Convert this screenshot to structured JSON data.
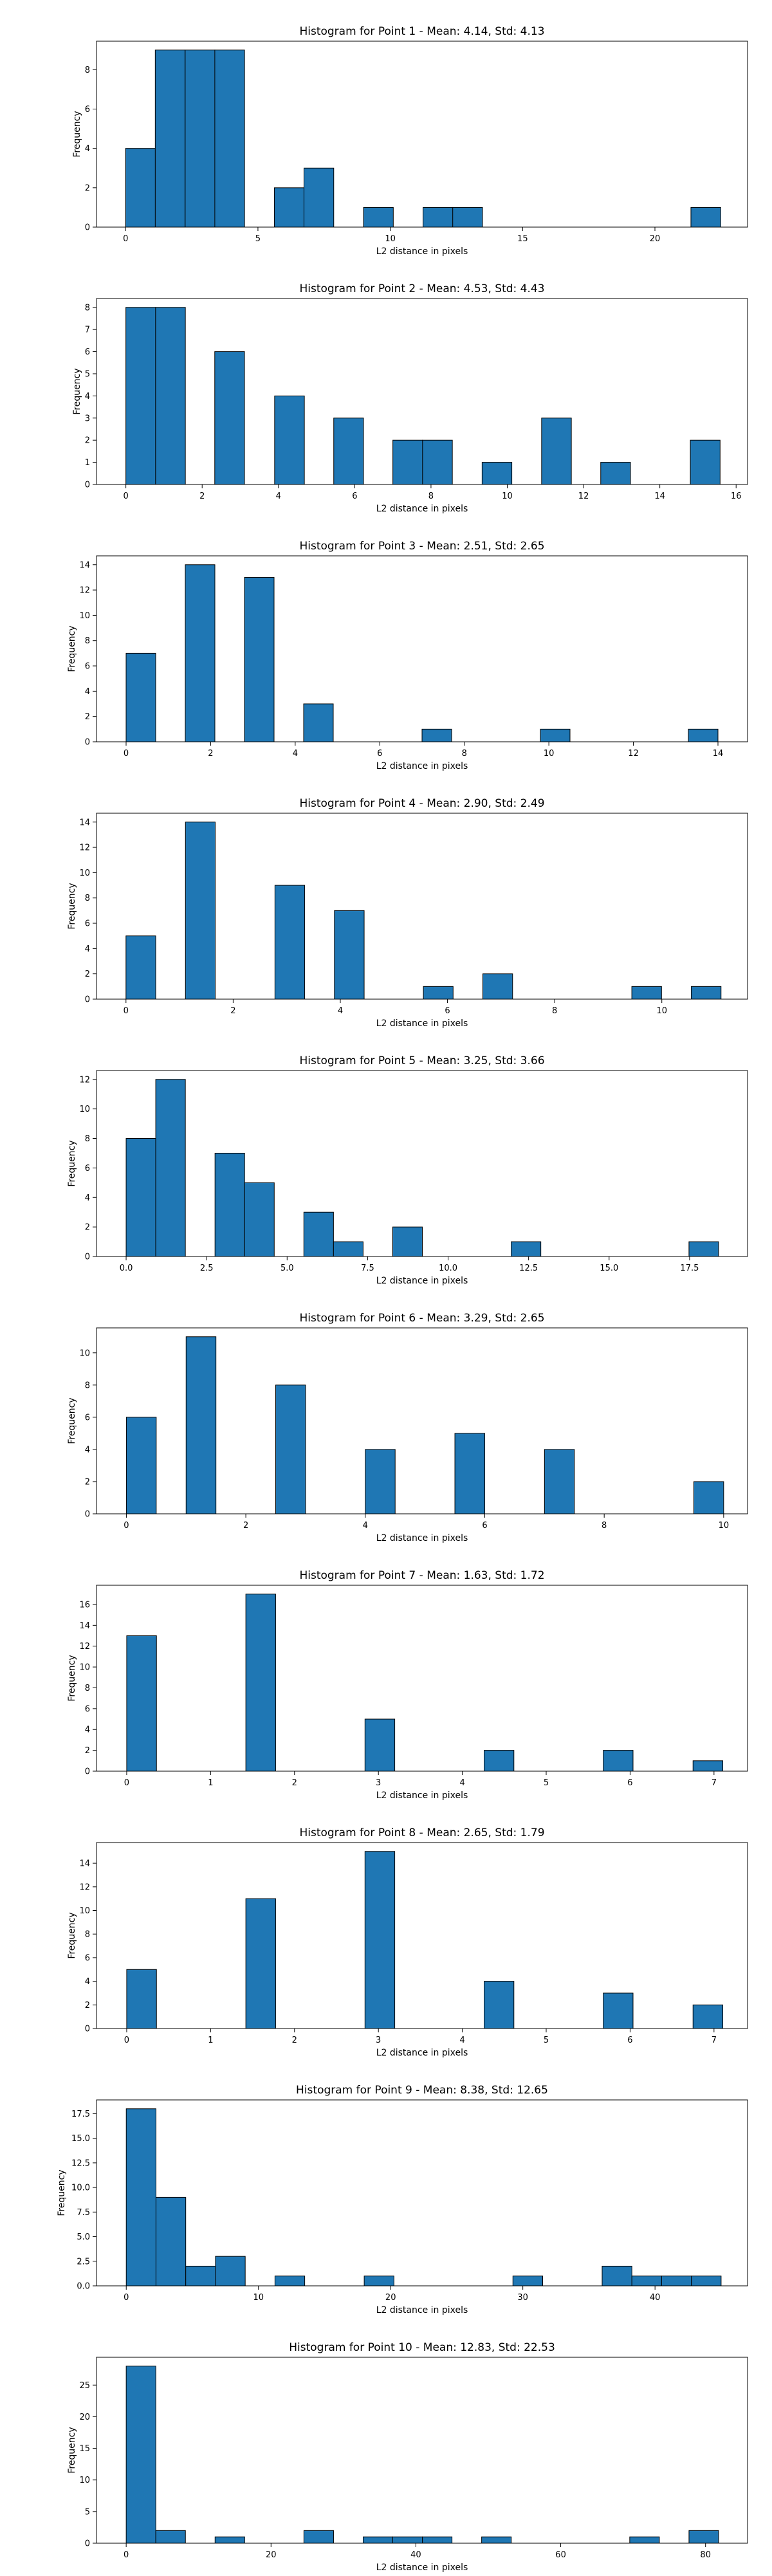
{
  "chart_data": [
    {
      "type": "bar",
      "title": "Histogram for Point 1 - Mean: 4.14, Std: 4.13",
      "xlabel": "L2 distance in pixels",
      "ylabel": "Frequency",
      "xlim": [
        -1.1,
        23.5
      ],
      "ylim": [
        0,
        9.45
      ],
      "xticks": [
        0,
        5,
        10,
        15,
        20
      ],
      "xtick_labels": [
        "0",
        "5",
        "10",
        "15",
        "20"
      ],
      "yticks": [
        0,
        2,
        4,
        6,
        8
      ],
      "ytick_labels": [
        "0",
        "2",
        "4",
        "6",
        "8"
      ],
      "bin_width": 1.124,
      "bins": [
        {
          "start": 0.0,
          "count": 4
        },
        {
          "start": 1.12,
          "count": 9
        },
        {
          "start": 2.25,
          "count": 9
        },
        {
          "start": 3.37,
          "count": 9
        },
        {
          "start": 5.62,
          "count": 2
        },
        {
          "start": 6.74,
          "count": 3
        },
        {
          "start": 8.99,
          "count": 1
        },
        {
          "start": 11.24,
          "count": 1
        },
        {
          "start": 12.36,
          "count": 1
        },
        {
          "start": 21.36,
          "count": 1
        }
      ],
      "grid": false,
      "legend": null
    },
    {
      "type": "bar",
      "title": "Histogram for Point 2 - Mean: 4.53, Std: 4.43",
      "xlabel": "L2 distance in pixels",
      "ylabel": "Frequency",
      "xlim": [
        -0.77,
        16.3
      ],
      "ylim": [
        0,
        8.4
      ],
      "xticks": [
        0,
        2,
        4,
        6,
        8,
        10,
        12,
        14,
        16
      ],
      "xtick_labels": [
        "0",
        "2",
        "4",
        "6",
        "8",
        "10",
        "12",
        "14",
        "16"
      ],
      "yticks": [
        0,
        1,
        2,
        3,
        4,
        5,
        6,
        7,
        8
      ],
      "ytick_labels": [
        "0",
        "1",
        "2",
        "3",
        "4",
        "5",
        "6",
        "7",
        "8"
      ],
      "bin_width": 0.78,
      "bins": [
        {
          "start": 0.0,
          "count": 8
        },
        {
          "start": 0.78,
          "count": 8
        },
        {
          "start": 2.33,
          "count": 6
        },
        {
          "start": 3.9,
          "count": 4
        },
        {
          "start": 5.45,
          "count": 3
        },
        {
          "start": 7.0,
          "count": 2
        },
        {
          "start": 7.78,
          "count": 2
        },
        {
          "start": 9.34,
          "count": 1
        },
        {
          "start": 10.9,
          "count": 3
        },
        {
          "start": 12.45,
          "count": 1
        },
        {
          "start": 14.8,
          "count": 2
        }
      ],
      "grid": false,
      "legend": null
    },
    {
      "type": "bar",
      "title": "Histogram for Point 3 - Mean: 2.51, Std: 2.65",
      "xlabel": "L2 distance in pixels",
      "ylabel": "Frequency",
      "xlim": [
        -0.7,
        14.7
      ],
      "ylim": [
        0,
        14.7
      ],
      "xticks": [
        0,
        2,
        4,
        6,
        8,
        10,
        12,
        14
      ],
      "xtick_labels": [
        "0",
        "2",
        "4",
        "6",
        "8",
        "10",
        "12",
        "14"
      ],
      "yticks": [
        0,
        2,
        4,
        6,
        8,
        10,
        12,
        14
      ],
      "ytick_labels": [
        "0",
        "2",
        "4",
        "6",
        "8",
        "10",
        "12",
        "14"
      ],
      "bin_width": 0.7,
      "bins": [
        {
          "start": 0.0,
          "count": 7
        },
        {
          "start": 1.4,
          "count": 14
        },
        {
          "start": 2.8,
          "count": 13
        },
        {
          "start": 4.2,
          "count": 3
        },
        {
          "start": 7.0,
          "count": 1
        },
        {
          "start": 9.8,
          "count": 1
        },
        {
          "start": 13.3,
          "count": 1
        }
      ],
      "grid": false,
      "legend": null
    },
    {
      "type": "bar",
      "title": "Histogram for Point 4 - Mean: 2.90, Std: 2.49",
      "xlabel": "L2 distance in pixels",
      "ylabel": "Frequency",
      "xlim": [
        -0.55,
        11.6
      ],
      "ylim": [
        0,
        14.7
      ],
      "xticks": [
        0,
        2,
        4,
        6,
        8,
        10
      ],
      "xtick_labels": [
        "0",
        "2",
        "4",
        "6",
        "8",
        "10"
      ],
      "yticks": [
        0,
        2,
        4,
        6,
        8,
        10,
        12,
        14
      ],
      "ytick_labels": [
        "0",
        "2",
        "4",
        "6",
        "8",
        "10",
        "12",
        "14"
      ],
      "bin_width": 0.555,
      "bins": [
        {
          "start": 0.0,
          "count": 5
        },
        {
          "start": 1.11,
          "count": 14
        },
        {
          "start": 2.78,
          "count": 9
        },
        {
          "start": 3.89,
          "count": 7
        },
        {
          "start": 5.55,
          "count": 1
        },
        {
          "start": 6.66,
          "count": 2
        },
        {
          "start": 9.44,
          "count": 1
        },
        {
          "start": 10.55,
          "count": 1
        }
      ],
      "grid": false,
      "legend": null
    },
    {
      "type": "bar",
      "title": "Histogram for Point 5 - Mean: 3.25, Std: 3.66",
      "xlabel": "L2 distance in pixels",
      "ylabel": "Frequency",
      "xlim": [
        -0.92,
        19.3
      ],
      "ylim": [
        0,
        12.6
      ],
      "xticks": [
        0,
        2.5,
        5,
        7.5,
        10,
        12.5,
        15,
        17.5
      ],
      "xtick_labels": [
        "0.0",
        "2.5",
        "5.0",
        "7.5",
        "10.0",
        "12.5",
        "15.0",
        "17.5"
      ],
      "yticks": [
        0,
        2,
        4,
        6,
        8,
        10,
        12
      ],
      "ytick_labels": [
        "0",
        "2",
        "4",
        "6",
        "8",
        "10",
        "12"
      ],
      "bin_width": 0.92,
      "bins": [
        {
          "start": 0.0,
          "count": 8
        },
        {
          "start": 0.92,
          "count": 12
        },
        {
          "start": 2.76,
          "count": 7
        },
        {
          "start": 3.68,
          "count": 5
        },
        {
          "start": 5.52,
          "count": 3
        },
        {
          "start": 6.44,
          "count": 1
        },
        {
          "start": 8.28,
          "count": 2
        },
        {
          "start": 11.96,
          "count": 1
        },
        {
          "start": 17.48,
          "count": 1
        }
      ],
      "grid": false,
      "legend": null
    },
    {
      "type": "bar",
      "title": "Histogram for Point 6 - Mean: 3.29, Std: 2.65",
      "xlabel": "L2 distance in pixels",
      "ylabel": "Frequency",
      "xlim": [
        -0.5,
        10.4
      ],
      "ylim": [
        0,
        11.55
      ],
      "xticks": [
        0,
        2,
        4,
        6,
        8,
        10
      ],
      "xtick_labels": [
        "0",
        "2",
        "4",
        "6",
        "8",
        "10"
      ],
      "yticks": [
        0,
        2,
        4,
        6,
        8,
        10
      ],
      "ytick_labels": [
        "0",
        "2",
        "4",
        "6",
        "8",
        "10"
      ],
      "bin_width": 0.5,
      "bins": [
        {
          "start": 0.0,
          "count": 6
        },
        {
          "start": 1.0,
          "count": 11
        },
        {
          "start": 2.5,
          "count": 8
        },
        {
          "start": 4.0,
          "count": 4
        },
        {
          "start": 5.5,
          "count": 5
        },
        {
          "start": 7.0,
          "count": 4
        },
        {
          "start": 9.5,
          "count": 2
        }
      ],
      "grid": false,
      "legend": null
    },
    {
      "type": "bar",
      "title": "Histogram for Point 7 - Mean: 1.63, Std: 1.72",
      "xlabel": "L2 distance in pixels",
      "ylabel": "Frequency",
      "xlim": [
        -0.36,
        7.4
      ],
      "ylim": [
        0,
        17.85
      ],
      "xticks": [
        0,
        1,
        2,
        3,
        4,
        5,
        6,
        7
      ],
      "xtick_labels": [
        "0",
        "1",
        "2",
        "3",
        "4",
        "5",
        "6",
        "7"
      ],
      "yticks": [
        0,
        2,
        4,
        6,
        8,
        10,
        12,
        14,
        16
      ],
      "ytick_labels": [
        "0",
        "2",
        "4",
        "6",
        "8",
        "10",
        "12",
        "14",
        "16"
      ],
      "bin_width": 0.355,
      "bins": [
        {
          "start": 0.0,
          "count": 13
        },
        {
          "start": 1.42,
          "count": 17
        },
        {
          "start": 2.84,
          "count": 5
        },
        {
          "start": 4.26,
          "count": 2
        },
        {
          "start": 5.68,
          "count": 2
        },
        {
          "start": 6.75,
          "count": 1
        }
      ],
      "grid": false,
      "legend": null
    },
    {
      "type": "bar",
      "title": "Histogram for Point 8 - Mean: 2.65, Std: 1.79",
      "xlabel": "L2 distance in pixels",
      "ylabel": "Frequency",
      "xlim": [
        -0.36,
        7.4
      ],
      "ylim": [
        0,
        15.75
      ],
      "xticks": [
        0,
        1,
        2,
        3,
        4,
        5,
        6,
        7
      ],
      "xtick_labels": [
        "0",
        "1",
        "2",
        "3",
        "4",
        "5",
        "6",
        "7"
      ],
      "yticks": [
        0,
        2,
        4,
        6,
        8,
        10,
        12,
        14
      ],
      "ytick_labels": [
        "0",
        "2",
        "4",
        "6",
        "8",
        "10",
        "12",
        "14"
      ],
      "bin_width": 0.355,
      "bins": [
        {
          "start": 0.0,
          "count": 5
        },
        {
          "start": 1.42,
          "count": 11
        },
        {
          "start": 2.84,
          "count": 15
        },
        {
          "start": 4.26,
          "count": 4
        },
        {
          "start": 5.68,
          "count": 3
        },
        {
          "start": 6.75,
          "count": 2
        }
      ],
      "grid": false,
      "legend": null
    },
    {
      "type": "bar",
      "title": "Histogram for Point 9 - Mean: 8.38, Std: 12.65",
      "xlabel": "L2 distance in pixels",
      "ylabel": "Frequency",
      "xlim": [
        -2.25,
        47.0
      ],
      "ylim": [
        0,
        18.9
      ],
      "xticks": [
        0,
        10,
        20,
        30,
        40
      ],
      "xtick_labels": [
        "0",
        "10",
        "20",
        "30",
        "40"
      ],
      "yticks": [
        0,
        2.5,
        5,
        7.5,
        10,
        12.5,
        15,
        17.5
      ],
      "ytick_labels": [
        "0.0",
        "2.5",
        "5.0",
        "7.5",
        "10.0",
        "12.5",
        "15.0",
        "17.5"
      ],
      "bin_width": 2.25,
      "bins": [
        {
          "start": 0.0,
          "count": 18
        },
        {
          "start": 2.25,
          "count": 9
        },
        {
          "start": 4.5,
          "count": 2
        },
        {
          "start": 6.75,
          "count": 3
        },
        {
          "start": 11.25,
          "count": 1
        },
        {
          "start": 18.0,
          "count": 1
        },
        {
          "start": 29.25,
          "count": 1
        },
        {
          "start": 36.0,
          "count": 2
        },
        {
          "start": 38.25,
          "count": 1
        },
        {
          "start": 40.5,
          "count": 1
        },
        {
          "start": 42.75,
          "count": 1
        }
      ],
      "grid": false,
      "legend": null
    },
    {
      "type": "bar",
      "title": "Histogram for Point 10 - Mean: 12.83, Std: 22.53",
      "xlabel": "L2 distance in pixels",
      "ylabel": "Frequency",
      "xlim": [
        -4.1,
        85.8
      ],
      "ylim": [
        0,
        29.4
      ],
      "xticks": [
        0,
        20,
        40,
        60,
        80
      ],
      "xtick_labels": [
        "0",
        "20",
        "40",
        "60",
        "80"
      ],
      "yticks": [
        0,
        5,
        10,
        15,
        20,
        25
      ],
      "ytick_labels": [
        "0",
        "5",
        "10",
        "15",
        "20",
        "25"
      ],
      "bin_width": 4.09,
      "bins": [
        {
          "start": 0.0,
          "count": 28
        },
        {
          "start": 4.09,
          "count": 2
        },
        {
          "start": 12.27,
          "count": 1
        },
        {
          "start": 24.54,
          "count": 2
        },
        {
          "start": 32.72,
          "count": 1
        },
        {
          "start": 36.81,
          "count": 1
        },
        {
          "start": 40.9,
          "count": 1
        },
        {
          "start": 49.08,
          "count": 1
        },
        {
          "start": 69.53,
          "count": 1
        },
        {
          "start": 77.71,
          "count": 2
        }
      ],
      "grid": false,
      "legend": null
    }
  ]
}
